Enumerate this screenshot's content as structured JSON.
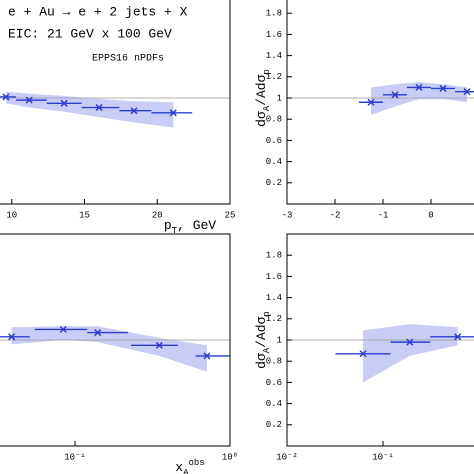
{
  "chart_data": [
    {
      "type": "errorbar",
      "log_x": false,
      "annotations": [
        "e + Au → e + 2 jets + X",
        "EIC: 21 GeV x 100 GeV",
        "EPPS16 nPDFs"
      ],
      "x_label": [
        "p",
        "T",
        ", GeV"
      ],
      "xlim": [
        5,
        25
      ],
      "xticks": [
        10,
        15,
        20,
        25
      ],
      "ylim": [
        0,
        2
      ],
      "reference": 1,
      "color": "#2b3ccf",
      "band_color": "#c9cdf5",
      "x": [
        9.6,
        11.2,
        13.6,
        16.0,
        18.4,
        21.1
      ],
      "x_low": [
        8.9,
        10.3,
        12.4,
        14.8,
        17.4,
        19.6
      ],
      "x_high": [
        10.3,
        12.4,
        14.8,
        17.4,
        19.6,
        22.4
      ],
      "values": [
        1.01,
        0.98,
        0.95,
        0.91,
        0.88,
        0.86
      ],
      "band_high": [
        1.06,
        1.04,
        1.02,
        0.99,
        0.97,
        0.96
      ],
      "band_low": [
        0.95,
        0.91,
        0.87,
        0.82,
        0.77,
        0.72
      ]
    },
    {
      "type": "errorbar",
      "log_x": false,
      "y_label": [
        "dσ",
        "A",
        "/Adσ",
        "p"
      ],
      "xlim": [
        -3,
        1
      ],
      "xticks": [
        -3,
        -2,
        -1,
        0
      ],
      "ylim": [
        0,
        2
      ],
      "yticks": [
        0.2,
        0.4,
        0.6,
        0.8,
        1,
        1.2,
        1.4,
        1.6,
        1.8
      ],
      "reference": 1,
      "color": "#2b3ccf",
      "band_color": "#c9cdf5",
      "x": [
        -1.25,
        -0.75,
        -0.25,
        0.25,
        0.75
      ],
      "x_low": [
        -1.5,
        -1,
        -0.5,
        0,
        0.5
      ],
      "x_high": [
        -1,
        -0.5,
        0,
        0.5,
        1
      ],
      "values": [
        0.96,
        1.03,
        1.1,
        1.09,
        1.06
      ],
      "band_high": [
        1.1,
        1.13,
        1.15,
        1.13,
        1.1
      ],
      "band_low": [
        0.84,
        0.92,
        0.99,
        0.99,
        0.96
      ]
    },
    {
      "type": "errorbar",
      "log_x": true,
      "x_label": [
        "x",
        "A",
        "obs"
      ],
      "xlim": [
        0.03,
        1
      ],
      "xticks": [
        {
          "value": 0.1,
          "label": "10⁻¹"
        },
        {
          "value": 1,
          "label": "10⁰"
        }
      ],
      "ylim": [
        0,
        2
      ],
      "reference": 1,
      "color": "#2b3ccf",
      "band_color": "#c9cdf5",
      "x": [
        0.039,
        0.084,
        0.14,
        0.35,
        0.71
      ],
      "x_low": [
        0.03,
        0.055,
        0.12,
        0.23,
        0.6
      ],
      "x_high": [
        0.051,
        0.12,
        0.22,
        0.46,
        1
      ],
      "values": [
        1.03,
        1.1,
        1.07,
        0.95,
        0.85
      ],
      "band_high": [
        1.12,
        1.13,
        1.13,
        1.02,
        0.95
      ],
      "band_low": [
        0.96,
        1.0,
        0.98,
        0.85,
        0.7
      ]
    },
    {
      "type": "errorbar",
      "log_x": true,
      "y_label": [
        "dσ",
        "A",
        "/Adσ",
        "p"
      ],
      "xlim": [
        0.01,
        1
      ],
      "xticks": [
        {
          "value": 0.01,
          "label": "10⁻²"
        },
        {
          "value": 0.1,
          "label": "10⁻¹"
        }
      ],
      "ylim": [
        0,
        2
      ],
      "yticks": [
        0.2,
        0.4,
        0.6,
        0.8,
        1,
        1.2,
        1.4,
        1.6,
        1.8
      ],
      "reference": 1,
      "color": "#2b3ccf",
      "band_color": "#c9cdf5",
      "x": [
        0.062,
        0.19,
        0.6
      ],
      "x_low": [
        0.032,
        0.12,
        0.31
      ],
      "x_high": [
        0.12,
        0.31,
        1
      ],
      "values": [
        0.87,
        0.98,
        1.03
      ],
      "band_high": [
        1.09,
        1.15,
        1.12
      ],
      "band_low": [
        0.6,
        0.85,
        0.95
      ]
    }
  ]
}
